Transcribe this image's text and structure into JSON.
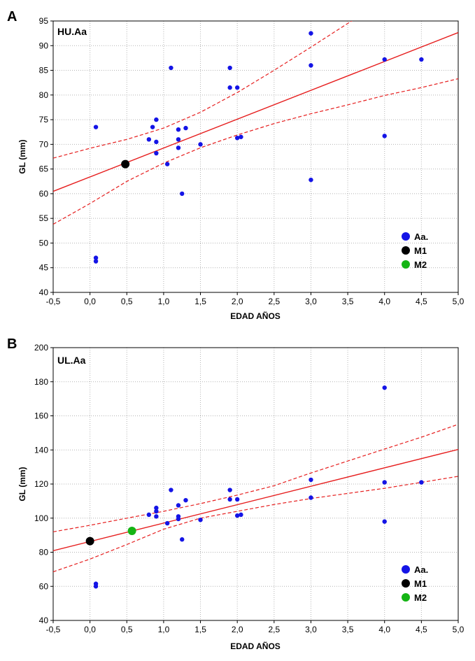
{
  "chart_data": [
    {
      "type": "scatter",
      "panel": "A",
      "title": "HU.Aa",
      "xlabel": "EDAD AÑOS",
      "ylabel": "GL (mm)",
      "xlim": [
        -0.5,
        5.0
      ],
      "ylim": [
        40,
        95
      ],
      "x_ticks": [
        -0.5,
        0.0,
        0.5,
        1.0,
        1.5,
        2.0,
        2.5,
        3.0,
        3.5,
        4.0,
        4.5,
        5.0
      ],
      "x_tick_labels": [
        "-0,5",
        "0,0",
        "0,5",
        "1,0",
        "1,5",
        "2,0",
        "2,5",
        "3,0",
        "3,5",
        "4,0",
        "4,5",
        "5,0"
      ],
      "y_ticks": [
        40,
        45,
        50,
        55,
        60,
        65,
        70,
        75,
        80,
        85,
        90,
        95
      ],
      "y_tick_labels": [
        "40",
        "45",
        "50",
        "55",
        "60",
        "65",
        "70",
        "75",
        "80",
        "85",
        "90",
        "95"
      ],
      "grid": true,
      "legend_position": "bottom-right",
      "series": [
        {
          "name": "Aa.",
          "color": "#1414e6",
          "role": "points",
          "points": [
            [
              0.08,
              73.5
            ],
            [
              0.08,
              47.0
            ],
            [
              0.08,
              46.3
            ],
            [
              0.8,
              71.0
            ],
            [
              0.85,
              73.5
            ],
            [
              0.9,
              75.0
            ],
            [
              0.9,
              70.5
            ],
            [
              0.9,
              68.2
            ],
            [
              1.05,
              66.0
            ],
            [
              1.1,
              85.5
            ],
            [
              1.2,
              73.0
            ],
            [
              1.2,
              71.0
            ],
            [
              1.2,
              69.3
            ],
            [
              1.25,
              60.0
            ],
            [
              1.3,
              73.3
            ],
            [
              1.5,
              70.0
            ],
            [
              1.9,
              85.5
            ],
            [
              1.9,
              81.5
            ],
            [
              2.0,
              81.5
            ],
            [
              2.0,
              71.3
            ],
            [
              2.05,
              71.5
            ],
            [
              3.0,
              92.5
            ],
            [
              3.0,
              86.0
            ],
            [
              3.0,
              62.8
            ],
            [
              4.0,
              87.2
            ],
            [
              4.0,
              71.7
            ],
            [
              4.5,
              87.2
            ]
          ]
        },
        {
          "name": "M1",
          "color": "#000000",
          "role": "points",
          "points": [
            [
              0.48,
              66.0
            ]
          ]
        },
        {
          "name": "M2",
          "color": "#14b414",
          "role": "legend-only",
          "points": []
        }
      ],
      "regression": {
        "color": "#e61e1e",
        "intercept": 63.4,
        "slope": 5.85
      },
      "confidence_band": {
        "color": "#e61e1e",
        "upper": [
          [
            -0.5,
            67.2
          ],
          [
            0.0,
            69.2
          ],
          [
            0.5,
            71.0
          ],
          [
            1.0,
            73.3
          ],
          [
            1.5,
            76.5
          ],
          [
            2.0,
            80.5
          ],
          [
            2.5,
            85.0
          ],
          [
            3.0,
            89.7
          ],
          [
            3.5,
            94.5
          ],
          [
            3.7,
            96.4
          ]
        ],
        "lower": [
          [
            -0.5,
            53.8
          ],
          [
            0.0,
            58.0
          ],
          [
            0.5,
            62.5
          ],
          [
            1.0,
            66.2
          ],
          [
            1.5,
            69.3
          ],
          [
            2.0,
            71.9
          ],
          [
            2.5,
            74.2
          ],
          [
            3.0,
            76.2
          ],
          [
            3.5,
            78.0
          ],
          [
            4.0,
            79.9
          ],
          [
            4.5,
            81.5
          ],
          [
            5.0,
            83.3
          ]
        ]
      }
    },
    {
      "type": "scatter",
      "panel": "B",
      "title": "UL.Aa",
      "xlabel": "EDAD AÑOS",
      "ylabel": "GL (mm)",
      "xlim": [
        -0.5,
        5.0
      ],
      "ylim": [
        40,
        200
      ],
      "x_ticks": [
        -0.5,
        0.0,
        0.5,
        1.0,
        1.5,
        2.0,
        2.5,
        3.0,
        3.5,
        4.0,
        4.5,
        5.0
      ],
      "x_tick_labels": [
        "-0,5",
        "0,0",
        "0,5",
        "1,0",
        "1,5",
        "2,0",
        "2,5",
        "3,0",
        "3,5",
        "4,0",
        "4,5",
        "5,0"
      ],
      "y_ticks": [
        40,
        60,
        80,
        100,
        120,
        140,
        160,
        180,
        200
      ],
      "y_tick_labels": [
        "40",
        "60",
        "80",
        "100",
        "120",
        "140",
        "160",
        "180",
        "200"
      ],
      "grid": true,
      "legend_position": "bottom-right",
      "series": [
        {
          "name": "Aa.",
          "color": "#1414e6",
          "role": "points",
          "points": [
            [
              0.08,
              61.5
            ],
            [
              0.08,
              60.0
            ],
            [
              0.8,
              102.0
            ],
            [
              0.9,
              106.0
            ],
            [
              0.9,
              104.0
            ],
            [
              0.9,
              101.0
            ],
            [
              1.05,
              97.0
            ],
            [
              1.1,
              116.5
            ],
            [
              1.2,
              107.5
            ],
            [
              1.2,
              101.0
            ],
            [
              1.2,
              99.5
            ],
            [
              1.25,
              87.5
            ],
            [
              1.3,
              110.5
            ],
            [
              1.5,
              99.0
            ],
            [
              1.9,
              116.5
            ],
            [
              1.9,
              111.0
            ],
            [
              2.0,
              111.0
            ],
            [
              2.0,
              101.5
            ],
            [
              2.05,
              102.0
            ],
            [
              3.0,
              122.5
            ],
            [
              3.0,
              112.0
            ],
            [
              4.0,
              176.5
            ],
            [
              4.0,
              121.0
            ],
            [
              4.0,
              98.0
            ],
            [
              4.5,
              121.0
            ]
          ]
        },
        {
          "name": "M1",
          "color": "#000000",
          "role": "points",
          "points": [
            [
              0.0,
              86.5
            ]
          ]
        },
        {
          "name": "M2",
          "color": "#14b414",
          "role": "points",
          "points": [
            [
              0.57,
              92.5
            ]
          ]
        }
      ],
      "regression": {
        "color": "#e61e1e",
        "intercept": 86.3,
        "slope": 10.8
      },
      "confidence_band": {
        "color": "#e61e1e",
        "upper": [
          [
            -0.5,
            92.0
          ],
          [
            0.0,
            95.8
          ],
          [
            0.5,
            100.0
          ],
          [
            1.0,
            104.0
          ],
          [
            1.5,
            108.5
          ],
          [
            2.0,
            113.5
          ],
          [
            2.5,
            119.0
          ],
          [
            3.0,
            126.5
          ],
          [
            3.5,
            133.5
          ],
          [
            4.0,
            140.5
          ],
          [
            4.5,
            147.5
          ],
          [
            5.0,
            155.0
          ]
        ],
        "lower": [
          [
            -0.5,
            68.5
          ],
          [
            0.0,
            76.0
          ],
          [
            0.5,
            84.5
          ],
          [
            1.0,
            93.5
          ],
          [
            1.5,
            100.0
          ],
          [
            2.0,
            104.0
          ],
          [
            2.5,
            108.0
          ],
          [
            3.0,
            111.5
          ],
          [
            3.5,
            114.5
          ],
          [
            4.0,
            117.5
          ],
          [
            4.5,
            121.0
          ],
          [
            5.0,
            124.5
          ]
        ]
      }
    }
  ]
}
